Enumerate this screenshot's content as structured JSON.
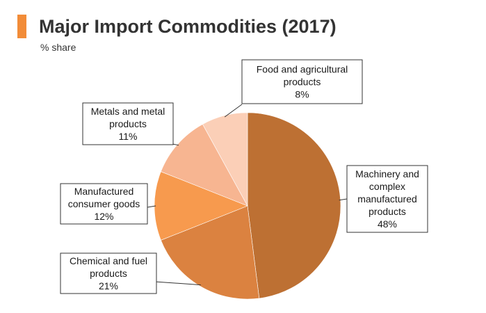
{
  "header": {
    "title": "Major Import Commodities (2017)",
    "subtitle": "% share",
    "accent_color": "#f28c38"
  },
  "chart_data": {
    "type": "pie",
    "title": "Major Import Commodities (2017)",
    "subtitle": "% share",
    "start": "12 o'clock",
    "direction": "clockwise",
    "slices": [
      {
        "label": [
          "Machinery and",
          "complex",
          "manufactured",
          "products",
          "48%"
        ],
        "value": 48,
        "color": "#bd7033"
      },
      {
        "label": [
          "Chemical and fuel",
          "products",
          "21%"
        ],
        "value": 21,
        "color": "#db8240"
      },
      {
        "label": [
          "Manufactured",
          "consumer goods",
          "12%"
        ],
        "value": 12,
        "color": "#f79a4e"
      },
      {
        "label": [
          "Metals and metal",
          "products",
          "11%"
        ],
        "value": 11,
        "color": "#f7b591"
      },
      {
        "label": [
          "Food and agricultural",
          "products",
          "8%"
        ],
        "value": 8,
        "color": "#fbcfb7"
      }
    ]
  }
}
